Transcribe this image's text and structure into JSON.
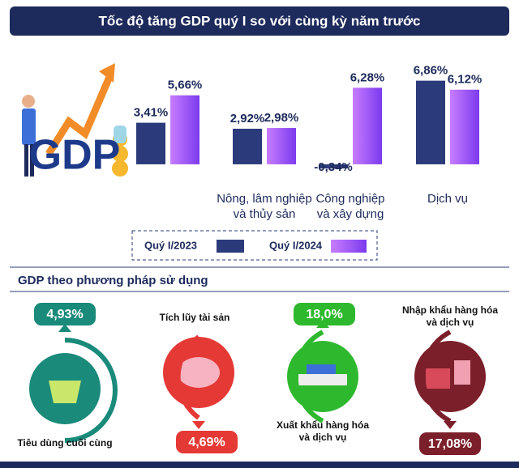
{
  "chart_data": {
    "type": "bar",
    "title": "Tốc độ tăng GDP quý I so với cùng kỳ năm trước",
    "categories": [
      null,
      "Nông, lâm nghiệp\nvà thủy sản",
      "Công nghiệp\nvà xây dựng",
      "Dịch vụ"
    ],
    "series": [
      {
        "name": "Quý I/2023",
        "color": "#2b3a7a",
        "values": [
          3.41,
          2.92,
          -0.34,
          6.86
        ],
        "value_labels": [
          "3,41%",
          "2,92%",
          "-0,34%",
          "6,86%"
        ]
      },
      {
        "name": "Quý I/2024",
        "color": "#9b5cf6",
        "values": [
          5.66,
          2.98,
          6.28,
          6.12
        ],
        "value_labels": [
          "5,66%",
          "2,98%",
          "6,28%",
          "6,12%"
        ]
      }
    ],
    "ylim": [
      -1,
      7.5
    ],
    "illustration_text": "GDP"
  },
  "section": {
    "title": "GDP theo phương pháp sử dụng",
    "items": [
      {
        "label": "Tiêu dùng cuối cùng",
        "value": "4,93%"
      },
      {
        "label": "Tích lũy tài sản",
        "value": "4,69%"
      },
      {
        "label": "Xuất khẩu hàng hóa\nvà dịch vụ",
        "value": "18,0%"
      },
      {
        "label": "Nhập khẩu hàng hóa\nvà dịch vụ",
        "value": "17,08%"
      }
    ]
  }
}
